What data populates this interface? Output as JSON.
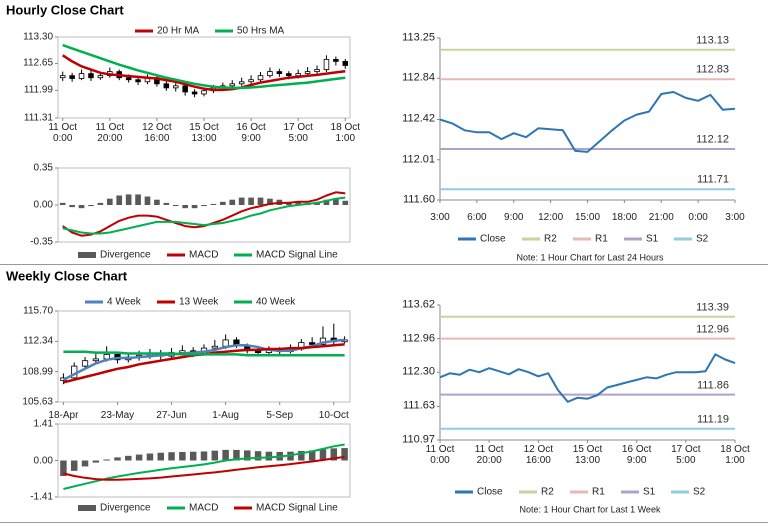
{
  "chart_data": [
    {
      "type": "candlestick",
      "title": "Hourly Close Chart",
      "open": [
        112.3,
        112.35,
        112.28,
        112.4,
        112.3,
        112.35,
        112.45,
        112.3,
        112.25,
        112.2,
        112.3,
        112.15,
        112.05,
        112.1,
        111.95,
        111.9,
        111.98,
        112.05,
        112.1,
        112.15,
        112.2,
        112.25,
        112.35,
        112.45,
        112.4,
        112.35,
        112.4,
        112.45,
        112.5,
        112.75,
        112.7
      ],
      "high": [
        112.45,
        112.42,
        112.5,
        112.48,
        112.44,
        112.55,
        112.5,
        112.38,
        112.32,
        112.38,
        112.36,
        112.22,
        112.18,
        112.16,
        112.02,
        112.06,
        112.12,
        112.18,
        112.24,
        112.3,
        112.36,
        112.44,
        112.55,
        112.52,
        112.46,
        112.5,
        112.56,
        112.6,
        112.85,
        112.82,
        112.76
      ],
      "low": [
        112.22,
        112.2,
        112.24,
        112.22,
        112.25,
        112.3,
        112.24,
        112.18,
        112.12,
        112.14,
        112.08,
        111.98,
        111.96,
        111.86,
        111.82,
        111.84,
        111.92,
        111.98,
        112.04,
        112.1,
        112.14,
        112.2,
        112.3,
        112.32,
        112.26,
        112.28,
        112.34,
        112.38,
        112.44,
        112.6,
        112.52
      ],
      "close": [
        112.35,
        112.28,
        112.4,
        112.3,
        112.35,
        112.45,
        112.3,
        112.25,
        112.2,
        112.3,
        112.15,
        112.05,
        112.1,
        111.95,
        111.9,
        111.98,
        112.05,
        112.1,
        112.15,
        112.2,
        112.25,
        112.35,
        112.45,
        112.4,
        112.35,
        112.4,
        112.45,
        112.5,
        112.75,
        112.7,
        112.6
      ],
      "series": [
        {
          "name": "20 Hr MA",
          "color": "#c00000",
          "values": [
            112.85,
            112.7,
            112.58,
            112.5,
            112.42,
            112.38,
            112.36,
            112.34,
            112.32,
            112.3,
            112.28,
            112.24,
            112.2,
            112.14,
            112.08,
            112.03,
            112.0,
            112.0,
            112.02,
            112.06,
            112.12,
            112.18,
            112.22,
            112.26,
            112.3,
            112.32,
            112.35,
            112.37,
            112.4,
            112.43,
            112.46
          ]
        },
        {
          "name": "50 Hrs MA",
          "color": "#00b050",
          "values": [
            113.1,
            113.02,
            112.94,
            112.86,
            112.78,
            112.7,
            112.62,
            112.55,
            112.48,
            112.42,
            112.36,
            112.3,
            112.25,
            112.2,
            112.15,
            112.11,
            112.08,
            112.06,
            112.05,
            112.05,
            112.06,
            112.08,
            112.1,
            112.12,
            112.14,
            112.16,
            112.18,
            112.21,
            112.24,
            112.27,
            112.3
          ]
        }
      ],
      "ylim": [
        111.31,
        113.3
      ],
      "yticks": [
        111.31,
        111.99,
        112.65,
        {
          "value": 113.3,
          "label": "113.30"
        }
      ],
      "xticks": [
        {
          "value": 0,
          "label": "11 Oct\n0:00"
        },
        {
          "value": 5,
          "label": "11 Oct\n20:00"
        },
        {
          "value": 10,
          "label": "12 Oct\n16:00"
        },
        {
          "value": 15,
          "label": "15 Oct\n13:00"
        },
        {
          "value": 20,
          "label": "16 Oct\n9:00"
        },
        {
          "value": 25,
          "label": "17 Oct\n5:00"
        },
        {
          "value": 30,
          "label": "18 Oct\n1:00"
        }
      ]
    },
    {
      "type": "combo",
      "series": [
        {
          "name": "Divergence",
          "type": "bar",
          "color": "#595959",
          "values": [
            0.02,
            -0.02,
            -0.03,
            -0.01,
            0.02,
            0.06,
            0.09,
            0.1,
            0.1,
            0.08,
            0.05,
            0.02,
            -0.01,
            -0.03,
            -0.03,
            -0.01,
            0.01,
            0.03,
            0.05,
            0.07,
            0.07,
            0.07,
            0.06,
            0.05,
            0.03,
            0.03,
            0.02,
            0.03,
            0.05,
            0.06,
            0.04
          ]
        },
        {
          "name": "MACD",
          "color": "#c00000",
          "values": [
            -0.2,
            -0.26,
            -0.29,
            -0.28,
            -0.25,
            -0.2,
            -0.15,
            -0.12,
            -0.1,
            -0.1,
            -0.11,
            -0.14,
            -0.17,
            -0.2,
            -0.21,
            -0.2,
            -0.17,
            -0.14,
            -0.1,
            -0.06,
            -0.03,
            -0.01,
            0.01,
            0.02,
            0.02,
            0.03,
            0.03,
            0.05,
            0.09,
            0.12,
            0.11
          ]
        },
        {
          "name": "MACD Signal Line",
          "color": "#00b050",
          "values": [
            -0.22,
            -0.24,
            -0.26,
            -0.27,
            -0.27,
            -0.26,
            -0.24,
            -0.22,
            -0.2,
            -0.18,
            -0.16,
            -0.16,
            -0.16,
            -0.17,
            -0.18,
            -0.19,
            -0.18,
            -0.17,
            -0.15,
            -0.13,
            -0.1,
            -0.08,
            -0.05,
            -0.03,
            -0.01,
            0.0,
            0.01,
            0.02,
            0.04,
            0.06,
            0.07
          ]
        }
      ],
      "ylim": [
        -0.35,
        0.35
      ],
      "yticks": [
        -0.35,
        {
          "value": 0,
          "label": "0.00"
        },
        0.35
      ]
    },
    {
      "type": "line",
      "series": [
        {
          "name": "Close",
          "color": "#2e75b6",
          "values": [
            112.42,
            112.38,
            112.31,
            112.29,
            112.29,
            112.22,
            112.28,
            112.24,
            112.33,
            112.32,
            112.31,
            112.1,
            112.09,
            112.2,
            112.31,
            112.41,
            112.47,
            112.5,
            112.68,
            112.7,
            112.64,
            112.61,
            112.67,
            112.52,
            112.53
          ]
        }
      ],
      "levels": [
        {
          "name": "R2",
          "color": "#c3d69b",
          "value": 113.13
        },
        {
          "name": "R1",
          "color": "#e6b9b8",
          "value": 112.83
        },
        {
          "name": "S1",
          "color": "#b1a0c7",
          "value": 112.12
        },
        {
          "name": "S2",
          "color": "#93cddd",
          "value": 111.71
        }
      ],
      "ylim": [
        111.6,
        113.25
      ],
      "yticks": [
        {
          "value": 111.6,
          "label": "111.60"
        },
        112.01,
        112.42,
        112.84,
        113.25
      ],
      "xticks": [
        {
          "value": 0,
          "label": "3:00"
        },
        {
          "value": 3,
          "label": "6:00"
        },
        {
          "value": 6,
          "label": "9:00"
        },
        {
          "value": 9,
          "label": "12:00"
        },
        {
          "value": 12,
          "label": "15:00"
        },
        {
          "value": 15,
          "label": "18:00"
        },
        {
          "value": 18,
          "label": "21:00"
        },
        {
          "value": 21,
          "label": "0:00"
        },
        {
          "value": 24,
          "label": "3:00"
        }
      ],
      "note": "Note: 1 Hour Chart for Last 24 Hours"
    },
    {
      "type": "candlestick",
      "title": "Weekly Close Chart",
      "open": [
        108.0,
        108.3,
        109.6,
        110.2,
        110.4,
        110.9,
        110.3,
        110.6,
        110.8,
        111.0,
        110.7,
        111.1,
        111.3,
        111.0,
        111.6,
        111.8,
        112.5,
        111.9,
        111.3,
        111.1,
        111.4,
        111.2,
        111.5,
        112.2,
        112.0,
        112.7,
        112.3
      ],
      "high": [
        108.8,
        110.0,
        110.6,
        111.0,
        111.8,
        111.2,
        111.0,
        111.3,
        111.5,
        111.4,
        111.6,
        111.9,
        111.7,
        112.0,
        112.5,
        113.1,
        112.8,
        112.1,
        111.6,
        111.8,
        111.7,
        112.0,
        112.6,
        112.8,
        114.0,
        114.3,
        112.9
      ],
      "low": [
        107.6,
        108.1,
        109.3,
        109.8,
        110.1,
        109.9,
        110.0,
        110.2,
        110.4,
        110.3,
        110.5,
        110.8,
        110.6,
        110.8,
        111.3,
        111.5,
        111.6,
        111.0,
        110.8,
        110.9,
        110.9,
        111.0,
        111.3,
        111.7,
        111.8,
        111.9,
        112.1
      ],
      "close": [
        108.3,
        109.6,
        110.2,
        110.4,
        110.9,
        110.3,
        110.6,
        110.8,
        111.0,
        110.7,
        111.1,
        111.3,
        111.0,
        111.6,
        111.8,
        112.5,
        111.9,
        111.3,
        111.1,
        111.4,
        111.2,
        111.5,
        112.2,
        112.0,
        112.7,
        112.3,
        112.5
      ],
      "series": [
        {
          "name": "4 Week",
          "color": "#4f81bd",
          "values": [
            108.1,
            108.7,
            109.3,
            109.9,
            110.3,
            110.5,
            110.5,
            110.6,
            110.7,
            110.8,
            110.9,
            111.0,
            111.1,
            111.2,
            111.4,
            111.7,
            111.9,
            111.9,
            111.7,
            111.4,
            111.3,
            111.3,
            111.6,
            111.8,
            112.2,
            112.4,
            112.5
          ]
        },
        {
          "name": "13 Week",
          "color": "#c00000",
          "values": [
            107.8,
            108.1,
            108.4,
            108.7,
            109.0,
            109.3,
            109.5,
            109.8,
            110.0,
            110.2,
            110.4,
            110.6,
            110.8,
            110.9,
            111.1,
            111.2,
            111.3,
            111.4,
            111.4,
            111.5,
            111.5,
            111.6,
            111.6,
            111.7,
            111.8,
            111.9,
            112.0
          ]
        },
        {
          "name": "40 Week",
          "color": "#00b050",
          "values": [
            111.2,
            111.2,
            111.2,
            111.1,
            111.1,
            111.1,
            111.0,
            111.0,
            111.0,
            111.0,
            111.0,
            110.9,
            110.9,
            110.9,
            110.9,
            110.9,
            110.9,
            110.8,
            110.8,
            110.8,
            110.8,
            110.8,
            110.8,
            110.8,
            110.8,
            110.8,
            110.8
          ]
        }
      ],
      "ylim": [
        105.63,
        115.7
      ],
      "yticks": [
        105.63,
        108.99,
        112.34,
        {
          "value": 115.7,
          "label": "115.70"
        }
      ],
      "xticks": [
        {
          "value": 0,
          "label": "18-Apr"
        },
        {
          "value": 5,
          "label": "23-May"
        },
        {
          "value": 10,
          "label": "27-Jun"
        },
        {
          "value": 15,
          "label": "1-Aug"
        },
        {
          "value": 20,
          "label": "5-Sep"
        },
        {
          "value": 25,
          "label": "10-Oct"
        }
      ]
    },
    {
      "type": "combo",
      "series": [
        {
          "name": "Divergence",
          "type": "bar",
          "color": "#595959",
          "values": [
            -0.6,
            -0.4,
            -0.23,
            -0.08,
            0.04,
            0.12,
            0.18,
            0.23,
            0.27,
            0.3,
            0.32,
            0.33,
            0.34,
            0.35,
            0.38,
            0.41,
            0.41,
            0.39,
            0.36,
            0.34,
            0.33,
            0.34,
            0.37,
            0.39,
            0.43,
            0.47,
            0.48
          ]
        },
        {
          "name": "MACD",
          "color": "#00b050",
          "values": [
            -1.1,
            -1.0,
            -0.9,
            -0.8,
            -0.7,
            -0.62,
            -0.55,
            -0.48,
            -0.42,
            -0.36,
            -0.3,
            -0.25,
            -0.2,
            -0.15,
            -0.08,
            0.0,
            0.05,
            0.08,
            0.1,
            0.12,
            0.15,
            0.2,
            0.28,
            0.35,
            0.45,
            0.55,
            0.62
          ]
        },
        {
          "name": "MACD Signal Line",
          "color": "#c00000",
          "values": [
            -0.5,
            -0.6,
            -0.67,
            -0.72,
            -0.74,
            -0.74,
            -0.73,
            -0.71,
            -0.69,
            -0.66,
            -0.62,
            -0.58,
            -0.54,
            -0.5,
            -0.46,
            -0.41,
            -0.36,
            -0.31,
            -0.26,
            -0.22,
            -0.18,
            -0.14,
            -0.09,
            -0.04,
            0.02,
            0.08,
            0.14
          ]
        }
      ],
      "ylim": [
        -1.41,
        1.41
      ],
      "yticks": [
        -1.41,
        {
          "value": 0,
          "label": "0.00"
        },
        1.41
      ]
    },
    {
      "type": "line",
      "series": [
        {
          "name": "Close",
          "color": "#2e75b6",
          "values": [
            112.2,
            112.28,
            112.25,
            112.35,
            112.3,
            112.38,
            112.32,
            112.26,
            112.36,
            112.3,
            112.22,
            112.28,
            111.95,
            111.72,
            111.8,
            111.78,
            111.85,
            112.0,
            112.05,
            112.1,
            112.15,
            112.2,
            112.18,
            112.25,
            112.3,
            112.3,
            112.3,
            112.32,
            112.65,
            112.55,
            112.48
          ]
        }
      ],
      "levels": [
        {
          "name": "R2",
          "color": "#c3d69b",
          "value": 113.39
        },
        {
          "name": "R1",
          "color": "#e6b9b8",
          "value": 112.96
        },
        {
          "name": "S1",
          "color": "#b1a0c7",
          "value": 111.86
        },
        {
          "name": "S2",
          "color": "#93cddd",
          "value": 111.19
        }
      ],
      "ylim": [
        110.97,
        113.62
      ],
      "yticks": [
        110.97,
        111.63,
        {
          "value": 112.3,
          "label": "112.30"
        },
        112.96,
        113.62
      ],
      "xticks": [
        {
          "value": 0,
          "label": "11 Oct\n0:00"
        },
        {
          "value": 5,
          "label": "11 Oct\n20:00"
        },
        {
          "value": 10,
          "label": "12 Oct\n16:00"
        },
        {
          "value": 15,
          "label": "15 Oct\n13:00"
        },
        {
          "value": 20,
          "label": "16 Oct\n9:00"
        },
        {
          "value": 25,
          "label": "17 Oct\n5:00"
        },
        {
          "value": 30,
          "label": "18 Oct\n1:00"
        }
      ],
      "note": "Note: 1 Hour Chart for Last 1 Week"
    }
  ]
}
